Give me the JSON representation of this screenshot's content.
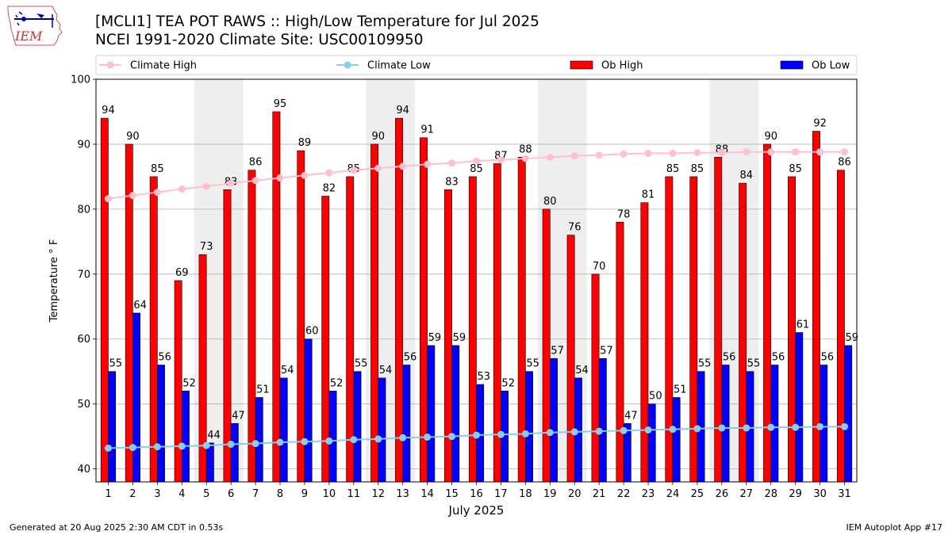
{
  "title_line1": "[MCLI1] TEA POT RAWS :: High/Low Temperature for Jul 2025",
  "title_line2": "NCEI 1991-2020 Climate Site: USC00109950",
  "logo_text": "IEM",
  "footer_left": "Generated at 20 Aug 2025 2:30 AM CDT in 0.53s",
  "footer_right": "IEM Autoplot App #17",
  "colors": {
    "ob_high": "#ff0000",
    "ob_low": "#0000ff",
    "climate_high": "#ffc0cb",
    "climate_low": "#87ceeb",
    "weekend_band": "#eeeeee",
    "grid": "#b0b0b0"
  },
  "chart_data": {
    "type": "bar",
    "xlabel": "July 2025",
    "ylabel": "Temperature ° F",
    "ylim": [
      38,
      100
    ],
    "yticks": [
      40,
      50,
      60,
      70,
      80,
      90,
      100
    ],
    "grid": "horizontal",
    "legend_position": "top",
    "categories": [
      "1",
      "2",
      "3",
      "4",
      "5",
      "6",
      "7",
      "8",
      "9",
      "10",
      "11",
      "12",
      "13",
      "14",
      "15",
      "16",
      "17",
      "18",
      "19",
      "20",
      "21",
      "22",
      "23",
      "24",
      "25",
      "26",
      "27",
      "28",
      "29",
      "30",
      "31"
    ],
    "highlighted_days": [
      5,
      6,
      12,
      13,
      19,
      20,
      26,
      27
    ],
    "series": [
      {
        "name": "Climate High",
        "kind": "line",
        "values": [
          81.6,
          82.1,
          82.6,
          83.1,
          83.5,
          84.0,
          84.4,
          84.8,
          85.2,
          85.6,
          86.0,
          86.3,
          86.6,
          86.9,
          87.1,
          87.4,
          87.6,
          87.8,
          88.0,
          88.2,
          88.3,
          88.5,
          88.6,
          88.6,
          88.7,
          88.7,
          88.8,
          88.8,
          88.8,
          88.8,
          88.8
        ]
      },
      {
        "name": "Climate Low",
        "kind": "line",
        "values": [
          43.2,
          43.3,
          43.4,
          43.5,
          43.6,
          43.8,
          43.9,
          44.1,
          44.2,
          44.3,
          44.5,
          44.6,
          44.8,
          44.9,
          45.0,
          45.2,
          45.3,
          45.4,
          45.6,
          45.7,
          45.8,
          45.9,
          46.0,
          46.1,
          46.2,
          46.3,
          46.3,
          46.4,
          46.4,
          46.5,
          46.5
        ]
      },
      {
        "name": "Ob High",
        "kind": "bar",
        "values": [
          94,
          90,
          85,
          69,
          73,
          83,
          86,
          95,
          89,
          82,
          85,
          90,
          94,
          91,
          83,
          85,
          87,
          88,
          80,
          76,
          70,
          78,
          81,
          85,
          85,
          88,
          84,
          90,
          85,
          92,
          86
        ]
      },
      {
        "name": "Ob Low",
        "kind": "bar",
        "values": [
          55,
          64,
          56,
          52,
          44,
          47,
          51,
          54,
          60,
          52,
          55,
          54,
          56,
          59,
          59,
          53,
          52,
          55,
          57,
          54,
          57,
          47,
          50,
          51,
          55,
          56,
          55,
          56,
          61,
          56,
          59
        ]
      }
    ]
  }
}
